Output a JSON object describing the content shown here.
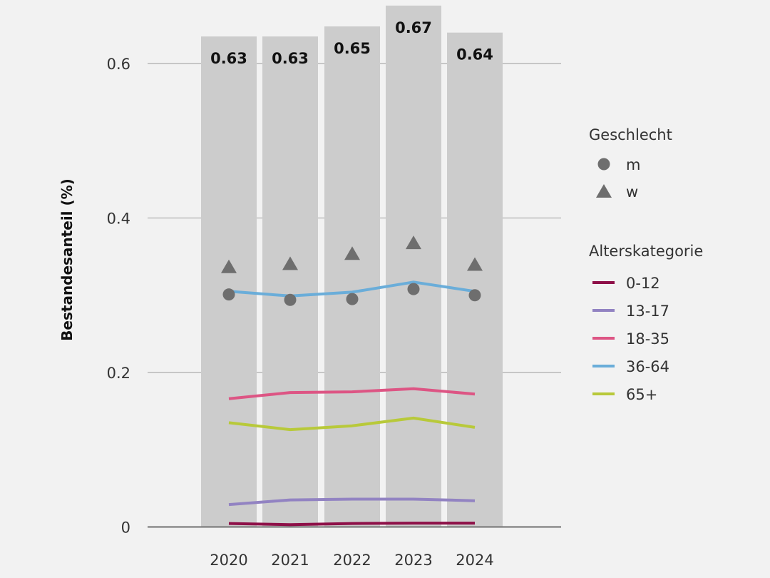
{
  "chart_data": {
    "type": "bar",
    "ylabel": "Bestandesanteil (%)",
    "xlabel": "",
    "ylim": [
      0,
      0.7
    ],
    "yticks": [
      0,
      0.2,
      0.4,
      0.6
    ],
    "ytick_labels": [
      "0",
      "0.2",
      "0.4",
      "0.6"
    ],
    "grid": true,
    "categories": [
      "2020",
      "2021",
      "2022",
      "2023",
      "2024"
    ],
    "bar_values": [
      0.635,
      0.635,
      0.648,
      0.675,
      0.64
    ],
    "bar_labels": [
      "0.63",
      "0.63",
      "0.65",
      "0.67",
      "0.64"
    ],
    "bar_color": "#cccccc",
    "geschlecht": {
      "title": "Geschlecht",
      "marker_color": "#6e6e6e",
      "series": [
        {
          "name": "m",
          "marker": "circle",
          "values": [
            0.301,
            0.294,
            0.295,
            0.308,
            0.3
          ]
        },
        {
          "name": "w",
          "marker": "triangle",
          "values": [
            0.337,
            0.341,
            0.354,
            0.368,
            0.34
          ]
        }
      ]
    },
    "alterskategorie": {
      "title": "Alterskategorie",
      "series": [
        {
          "name": "0-12",
          "color": "#8e1048",
          "values": [
            0.0045,
            0.003,
            0.0045,
            0.005,
            0.005
          ]
        },
        {
          "name": "13-17",
          "color": "#9283c2",
          "values": [
            0.029,
            0.035,
            0.036,
            0.036,
            0.034
          ]
        },
        {
          "name": "18-35",
          "color": "#dd5584",
          "values": [
            0.166,
            0.174,
            0.175,
            0.179,
            0.172
          ]
        },
        {
          "name": "36-64",
          "color": "#6aadd9",
          "values": [
            0.305,
            0.299,
            0.304,
            0.317,
            0.305
          ]
        },
        {
          "name": "65+",
          "color": "#b8c93a",
          "values": [
            0.135,
            0.126,
            0.131,
            0.141,
            0.129
          ]
        }
      ]
    },
    "legend_position": "right"
  }
}
